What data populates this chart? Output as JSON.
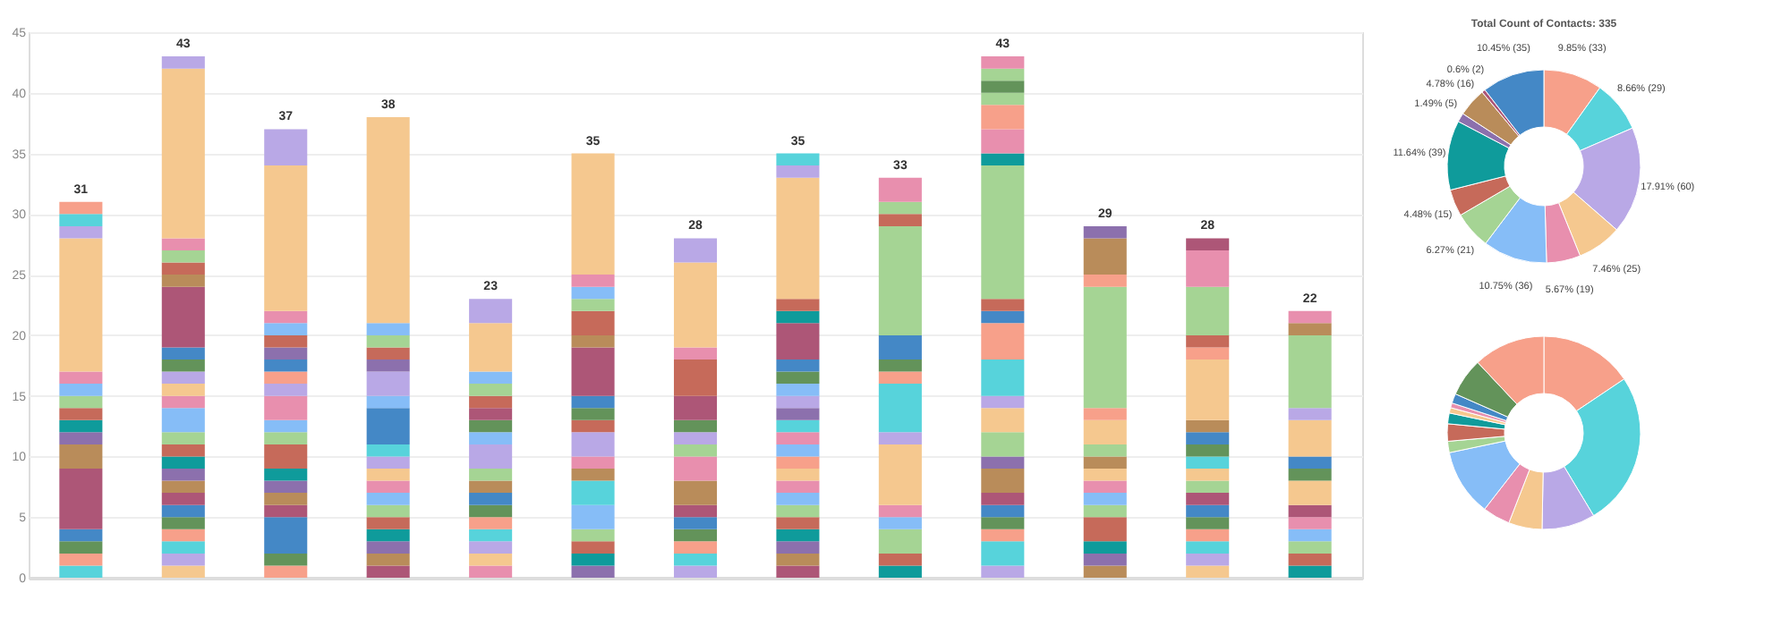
{
  "chart_data": [
    {
      "type": "bar",
      "stacked": true,
      "categories": [
        null,
        null,
        null,
        null,
        null,
        null,
        null,
        null,
        null,
        null,
        null,
        null,
        null
      ],
      "ylim": [
        0,
        45
      ],
      "yticks": [
        0,
        5,
        10,
        15,
        20,
        25,
        30,
        35,
        40,
        45
      ],
      "grid": "y",
      "totals": [
        "31",
        "43",
        "37",
        "38",
        "23",
        "35",
        "28",
        "35",
        "33",
        "43",
        "29",
        "28",
        "22"
      ],
      "series": [
        {
          "values": [
            1,
            1,
            1,
            1,
            1,
            1,
            1,
            1,
            1,
            1,
            1,
            1,
            1
          ],
          "colors": [
            "#57d3db",
            "#f5c88f",
            "#f7a08a",
            "#ad5677",
            "#e88fae",
            "#8c70ad",
            "#b9a8e6",
            "#ad5677",
            "#0f9b9b",
            "#b9a8e6",
            "#b98c5a",
            "#f5c88f",
            "#0f9b9b"
          ]
        },
        {
          "values": [
            1,
            1,
            1,
            1,
            1,
            1,
            1,
            1,
            1,
            2,
            1,
            1,
            1
          ],
          "colors": [
            "#f7a08a",
            "#b9a8e6",
            "#63935a",
            "#b98c5a",
            "#f5c88f",
            "#0f9b9b",
            "#57d3db",
            "#b98c5a",
            "#c66a5a",
            "#57d3db",
            "#8c70ad",
            "#b9a8e6",
            "#c66a5a"
          ]
        },
        {
          "values": [
            1,
            1,
            3,
            1,
            1,
            1,
            1,
            1,
            2,
            1,
            1,
            1,
            1
          ],
          "colors": [
            "#63935a",
            "#57d3db",
            "#4488c6",
            "#8c70ad",
            "#b9a8e6",
            "#c66a5a",
            "#f7a08a",
            "#8c70ad",
            "#a5d494",
            "#f7a08a",
            "#0f9b9b",
            "#57d3db",
            "#a5d494"
          ]
        },
        {
          "values": [
            1,
            1,
            1,
            1,
            1,
            1,
            1,
            1,
            1,
            1,
            2,
            1,
            1
          ],
          "colors": [
            "#4488c6",
            "#f7a08a",
            "#ad5677",
            "#0f9b9b",
            "#57d3db",
            "#a5d494",
            "#63935a",
            "#0f9b9b",
            "#86bdf7",
            "#63935a",
            "#c66a5a",
            "#f7a08a",
            "#86bdf7"
          ]
        },
        {
          "values": [
            5,
            1,
            1,
            1,
            1,
            2,
            1,
            1,
            1,
            1,
            1,
            1,
            1
          ],
          "colors": [
            "#ad5677",
            "#63935a",
            "#b98c5a",
            "#c66a5a",
            "#f7a08a",
            "#86bdf7",
            "#4488c6",
            "#c66a5a",
            "#e88fae",
            "#4488c6",
            "#a5d494",
            "#63935a",
            "#e88fae"
          ]
        },
        {
          "values": [
            2,
            1,
            1,
            1,
            1,
            2,
            1,
            1,
            5,
            1,
            1,
            1,
            1
          ],
          "colors": [
            "#b98c5a",
            "#4488c6",
            "#8c70ad",
            "#a5d494",
            "#63935a",
            "#57d3db",
            "#ad5677",
            "#a5d494",
            "#f5c88f",
            "#ad5677",
            "#86bdf7",
            "#4488c6",
            "#ad5677"
          ]
        },
        {
          "values": [
            1,
            1,
            1,
            1,
            1,
            1,
            2,
            1,
            1,
            2,
            1,
            1,
            2
          ],
          "colors": [
            "#8c70ad",
            "#ad5677",
            "#0f9b9b",
            "#86bdf7",
            "#4488c6",
            "#b98c5a",
            "#b98c5a",
            "#86bdf7",
            "#b9a8e6",
            "#b98c5a",
            "#e88fae",
            "#ad5677",
            "#f5c88f"
          ]
        },
        {
          "values": [
            1,
            1,
            2,
            1,
            1,
            1,
            2,
            1,
            4,
            1,
            1,
            1,
            1
          ],
          "colors": [
            "#0f9b9b",
            "#b98c5a",
            "#c66a5a",
            "#e88fae",
            "#b98c5a",
            "#e88fae",
            "#e88fae",
            "#e88fae",
            "#57d3db",
            "#8c70ad",
            "#f5c88f",
            "#a5d494",
            "#63935a"
          ]
        },
        {
          "values": [
            1,
            1,
            1,
            1,
            1,
            2,
            1,
            1,
            1,
            2,
            1,
            1,
            1
          ],
          "colors": [
            "#c66a5a",
            "#8c70ad",
            "#a5d494",
            "#f5c88f",
            "#a5d494",
            "#b9a8e6",
            "#a5d494",
            "#f5c88f",
            "#f7a08a",
            "#a5d494",
            "#b98c5a",
            "#f5c88f",
            "#4488c6"
          ]
        },
        {
          "values": [
            1,
            1,
            1,
            1,
            2,
            1,
            1,
            1,
            1,
            2,
            1,
            1,
            3
          ],
          "colors": [
            "#a5d494",
            "#0f9b9b",
            "#86bdf7",
            "#b9a8e6",
            "#b9a8e6",
            "#c66a5a",
            "#b9a8e6",
            "#f7a08a",
            "#63935a",
            "#f5c88f",
            "#a5d494",
            "#57d3db",
            "#f5c88f"
          ]
        },
        {
          "values": [
            1,
            1,
            2,
            1,
            1,
            1,
            1,
            1,
            2,
            1,
            2,
            1,
            1
          ],
          "colors": [
            "#86bdf7",
            "#c66a5a",
            "#e88fae",
            "#57d3db",
            "#86bdf7",
            "#63935a",
            "#63935a",
            "#86bdf7",
            "#4488c6",
            "#b9a8e6",
            "#f5c88f",
            "#63935a",
            "#b9a8e6"
          ]
        },
        {
          "values": [
            1,
            1,
            1,
            3,
            1,
            1,
            2,
            1,
            9,
            3,
            1,
            1,
            6
          ],
          "colors": [
            "#e88fae",
            "#a5d494",
            "#b9a8e6",
            "#4488c6",
            "#63935a",
            "#4488c6",
            "#ad5677",
            "#e88fae",
            "#a5d494",
            "#57d3db",
            "#f7a08a",
            "#4488c6",
            "#a5d494"
          ]
        },
        {
          "values": [
            11,
            2,
            1,
            1,
            1,
            4,
            3,
            1,
            1,
            3,
            10,
            1,
            1
          ],
          "colors": [
            "#f5c88f",
            "#86bdf7",
            "#f7a08a",
            "#86bdf7",
            "#ad5677",
            "#ad5677",
            "#c66a5a",
            "#57d3db",
            "#c66a5a",
            "#f7a08a",
            "#a5d494",
            "#b98c5a",
            "#b98c5a"
          ]
        },
        {
          "values": [
            1,
            1,
            1,
            2,
            1,
            1,
            1,
            1,
            1,
            1,
            1,
            5,
            1
          ],
          "colors": [
            "#b9a8e6",
            "#e88fae",
            "#4488c6",
            "#b9a8e6",
            "#c66a5a",
            "#b98c5a",
            "#e88fae",
            "#8c70ad",
            "#a5d494",
            "#4488c6",
            "#f7a08a",
            "#f5c88f",
            "#e88fae"
          ]
        },
        {
          "values": [
            1,
            1,
            1,
            1,
            1,
            2,
            7,
            1,
            2,
            1,
            3,
            1,
            null
          ],
          "colors": [
            "#57d3db",
            "#f5c88f",
            "#8c70ad",
            "#8c70ad",
            "#a5d494",
            "#c66a5a",
            "#f5c88f",
            "#b9a8e6",
            "#e88fae",
            "#c66a5a",
            "#b98c5a",
            "#f7a08a",
            null
          ]
        },
        {
          "values": [
            1,
            1,
            1,
            1,
            1,
            1,
            2,
            1,
            null,
            11,
            1,
            1,
            null
          ],
          "colors": [
            "#f7a08a",
            "#b9a8e6",
            "#c66a5a",
            "#c66a5a",
            "#86bdf7",
            "#a5d494",
            "#b9a8e6",
            "#86bdf7",
            null,
            "#a5d494",
            "#8c70ad",
            "#c66a5a",
            null
          ]
        },
        {
          "values": [
            null,
            1,
            1,
            1,
            4,
            1,
            null,
            1,
            null,
            1,
            null,
            4,
            null
          ],
          "colors": [
            null,
            "#63935a",
            "#86bdf7",
            "#a5d494",
            "#f5c88f",
            "#86bdf7",
            null,
            "#63935a",
            null,
            "#0f9b9b",
            null,
            "#a5d494",
            null
          ]
        },
        {
          "values": [
            null,
            1,
            1,
            1,
            2,
            1,
            null,
            1,
            null,
            2,
            null,
            3,
            null
          ],
          "colors": [
            null,
            "#4488c6",
            "#e88fae",
            "#86bdf7",
            "#b9a8e6",
            "#e88fae",
            null,
            "#4488c6",
            null,
            "#e88fae",
            null,
            "#e88fae",
            null
          ]
        },
        {
          "values": [
            null,
            5,
            12,
            17,
            null,
            10,
            null,
            3,
            null,
            2,
            null,
            1,
            null
          ],
          "colors": [
            null,
            "#ad5677",
            "#f5c88f",
            "#f5c88f",
            null,
            "#f5c88f",
            null,
            "#ad5677",
            null,
            "#f7a08a",
            null,
            "#ad5677",
            null
          ]
        },
        {
          "values": [
            null,
            1,
            3,
            null,
            null,
            null,
            null,
            1,
            null,
            1,
            null,
            null,
            null
          ],
          "colors": [
            null,
            "#b98c5a",
            "#b9a8e6",
            null,
            null,
            null,
            null,
            "#0f9b9b",
            null,
            "#a5d494",
            null,
            null,
            null
          ]
        },
        {
          "values": [
            null,
            1,
            null,
            null,
            null,
            null,
            null,
            1,
            null,
            1,
            null,
            null,
            null
          ],
          "colors": [
            null,
            "#c66a5a",
            null,
            null,
            null,
            null,
            null,
            "#c66a5a",
            null,
            "#63935a",
            null,
            null,
            null
          ]
        },
        {
          "values": [
            null,
            1,
            null,
            null,
            null,
            null,
            null,
            10,
            null,
            1,
            null,
            null,
            null
          ],
          "colors": [
            null,
            "#a5d494",
            null,
            null,
            null,
            null,
            null,
            "#f5c88f",
            null,
            "#a5d494",
            null,
            null,
            null
          ]
        },
        {
          "values": [
            null,
            1,
            null,
            null,
            null,
            null,
            null,
            1,
            null,
            1,
            null,
            null,
            null
          ],
          "colors": [
            null,
            "#e88fae",
            null,
            null,
            null,
            null,
            null,
            "#b9a8e6",
            null,
            "#e88fae",
            null,
            null,
            null
          ]
        },
        {
          "values": [
            null,
            14,
            null,
            null,
            null,
            null,
            null,
            1,
            null,
            null,
            null,
            null,
            null
          ],
          "colors": [
            null,
            "#f5c88f",
            null,
            null,
            null,
            null,
            null,
            "#57d3db",
            null,
            null,
            null,
            null,
            null
          ]
        },
        {
          "values": [
            null,
            1,
            null,
            null,
            null,
            null,
            null,
            null,
            null,
            null,
            null,
            null,
            null
          ],
          "colors": [
            null,
            "#b9a8e6",
            null,
            null,
            null,
            null,
            null,
            null,
            null,
            null,
            null,
            null,
            null
          ]
        }
      ]
    },
    {
      "type": "donut",
      "title": "Total Count of Contacts: 335",
      "categories": [
        null,
        null,
        null,
        null,
        null,
        null,
        null,
        null,
        null,
        null,
        null,
        null,
        null
      ],
      "values": [
        33,
        29,
        60,
        25,
        19,
        36,
        21,
        15,
        39,
        5,
        16,
        2,
        35
      ],
      "value_labels": [
        "9.85% (33)",
        "8.66% (29)",
        "17.91% (60)",
        "7.46% (25)",
        "5.67% (19)",
        "10.75% (36)",
        "6.27% (21)",
        "4.48% (15)",
        "11.64% (39)",
        "1.49% (5)",
        "4.78% (16)",
        "0.6% (2)",
        "10.45% (35)"
      ],
      "colors": [
        "#f7a08a",
        "#57d3db",
        "#b9a8e6",
        "#f5c88f",
        "#e88fae",
        "#86bdf7",
        "#a5d494",
        "#c66a5a",
        "#0f9b9b",
        "#8c70ad",
        "#b98c5a",
        "#ad5677",
        "#4488c6"
      ]
    },
    {
      "type": "donut",
      "categories": [
        null,
        null,
        null,
        null,
        null,
        null,
        null,
        null,
        null,
        null,
        null,
        null,
        null,
        null
      ],
      "values": [
        15.6,
        25.8,
        8.9,
        5.6,
        4.6,
        11.2,
        1.9,
        2.9,
        1.8,
        0.9,
        0.8,
        1.6,
        6.4,
        12.0
      ],
      "colors": [
        "#f7a08a",
        "#57d3db",
        "#b9a8e6",
        "#f5c88f",
        "#e88fae",
        "#86bdf7",
        "#a5d494",
        "#c66a5a",
        "#0f9b9b",
        "#f5c88f",
        "#e88fae",
        "#4488c6",
        "#63935a",
        "#f7a08a"
      ]
    }
  ]
}
